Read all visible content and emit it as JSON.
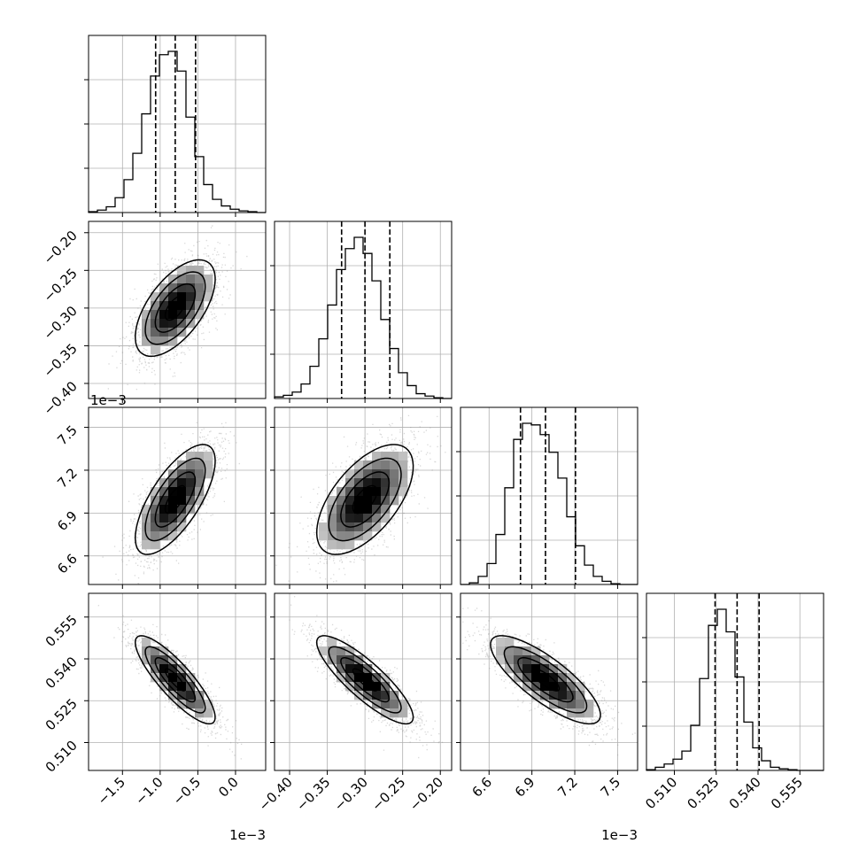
{
  "chart_data": {
    "type": "corner",
    "grid": true,
    "parameters": [
      {
        "range": [
          -1.95,
          0.4
        ],
        "ticks": [
          -1.5,
          -1.0,
          -0.5,
          0.0
        ],
        "tick_labels": [
          "−1.5",
          "−1.0",
          "−0.5",
          "0.0"
        ],
        "offset": "1e−3",
        "median": -0.8,
        "quantiles": [
          -1.06,
          -0.8,
          -0.53
        ]
      },
      {
        "range": [
          -0.42,
          -0.185
        ],
        "ticks": [
          -0.4,
          -0.35,
          -0.3,
          -0.25,
          -0.2
        ],
        "tick_labels": [
          "−0.40",
          "−0.35",
          "−0.30",
          "−0.25",
          "−0.20"
        ],
        "offset": "",
        "median": -0.3,
        "quantiles": [
          -0.331,
          -0.3,
          -0.267
        ]
      },
      {
        "range": [
          6.4,
          7.64
        ],
        "ticks": [
          6.6,
          6.9,
          7.2,
          7.5
        ],
        "tick_labels": [
          "6.6",
          "6.9",
          "7.2",
          "7.5"
        ],
        "offset": "1e−3",
        "median": 6.995,
        "quantiles": [
          6.82,
          6.995,
          7.205
        ]
      },
      {
        "range": [
          0.5,
          0.5635
        ],
        "ticks": [
          0.51,
          0.525,
          0.54,
          0.555
        ],
        "tick_labels": [
          "0.510",
          "0.525",
          "0.540",
          "0.555"
        ],
        "offset": "",
        "median": 0.5325,
        "quantiles": [
          0.5246,
          0.5325,
          0.5404
        ]
      }
    ],
    "histograms": [
      {
        "param": 0,
        "edges": [
          -1.95,
          0.4
        ],
        "bins": 20,
        "counts": [
          0.5,
          1.5,
          3.5,
          9,
          20,
          36,
          60,
          83,
          96,
          98,
          86,
          58,
          34,
          17,
          8,
          4,
          2,
          1,
          0.5,
          0
        ]
      },
      {
        "param": 1,
        "bins": 20,
        "counts": [
          1,
          2,
          4,
          9,
          20,
          37,
          58,
          80,
          93,
          100,
          90,
          73,
          49,
          31,
          16,
          8,
          3,
          1.5,
          0.5,
          0
        ]
      },
      {
        "param": 2,
        "bins": 20,
        "counts": [
          0,
          1,
          5,
          13,
          31,
          60,
          90,
          100,
          99,
          93,
          82,
          66,
          42,
          24,
          12,
          5,
          2,
          0.5,
          0,
          0
        ]
      },
      {
        "param": 3,
        "bins": 20,
        "counts": [
          0.5,
          2,
          4,
          7,
          12,
          28,
          57,
          90,
          100,
          86,
          58,
          30,
          14,
          6,
          2,
          1,
          0.5,
          0,
          0,
          0
        ]
      }
    ],
    "pairs": [
      {
        "x": 0,
        "y": 1,
        "corr": 0.6
      },
      {
        "x": 0,
        "y": 2,
        "corr": 0.7
      },
      {
        "x": 1,
        "y": 2,
        "corr": 0.6
      },
      {
        "x": 0,
        "y": 3,
        "corr": -0.85
      },
      {
        "x": 1,
        "y": 3,
        "corr": -0.85
      },
      {
        "x": 2,
        "y": 3,
        "corr": -0.8
      }
    ],
    "contour_levels": [
      0.5,
      1.0,
      1.5,
      2.0
    ]
  }
}
